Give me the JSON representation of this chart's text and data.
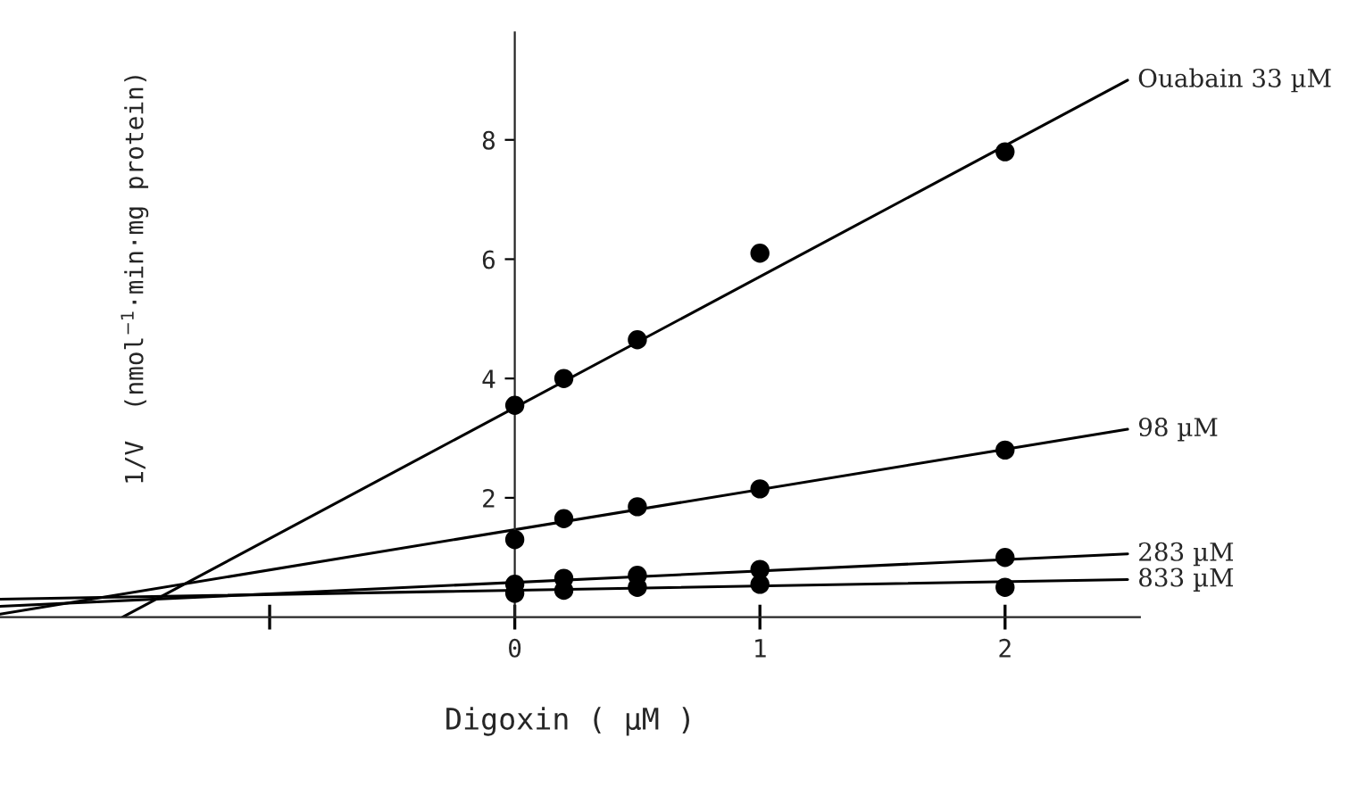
{
  "chart_data": {
    "type": "scatter",
    "xlabel": "Digoxin ( µM )",
    "ylabel": "1/V  (nmol$^{−1}$·min·mg protein)",
    "xlim": [
      -2.1,
      2.55
    ],
    "ylim": [
      0,
      9.8
    ],
    "xticks": [
      {
        "value": -1,
        "label": null
      },
      0,
      1,
      2
    ],
    "yticks": [
      2,
      4,
      6,
      8
    ],
    "grid": false,
    "legend": false,
    "series": [
      {
        "type": "line",
        "name": "Ouabain 33 µM",
        "color": "#000000",
        "marker": "none",
        "x": [
          -1.6,
          2.5
        ],
        "values": [
          0,
          9.0
        ]
      },
      {
        "type": "line",
        "name": "98 µM",
        "color": "#000000",
        "marker": "none",
        "x": [
          -2.1,
          2.5
        ],
        "values": [
          0.05,
          3.15
        ]
      },
      {
        "type": "line",
        "name": "283 µM",
        "color": "#000000",
        "marker": "none",
        "x": [
          -2.1,
          2.5
        ],
        "values": [
          0.18,
          1.06
        ]
      },
      {
        "type": "line",
        "name": "833 µM",
        "color": "#000000",
        "marker": "none",
        "x": [
          -2.1,
          2.5
        ],
        "values": [
          0.3,
          0.63
        ]
      },
      {
        "color": "#000000",
        "marker": "circle",
        "x": [
          0,
          0.2,
          0.5,
          1,
          2
        ],
        "values": [
          3.55,
          4.0,
          4.65,
          6.1,
          7.8
        ]
      },
      {
        "color": "#000000",
        "marker": "circle",
        "x": [
          0,
          0.2,
          0.5,
          1,
          2
        ],
        "values": [
          1.3,
          1.65,
          1.85,
          2.15,
          2.8
        ]
      },
      {
        "color": "#000000",
        "marker": "circle",
        "x": [
          0,
          0.2,
          0.5,
          1,
          2
        ],
        "values": [
          0.55,
          0.65,
          0.7,
          0.8,
          1.0
        ]
      },
      {
        "color": "#000000",
        "marker": "circle",
        "x": [
          0,
          0.2,
          0.5,
          1,
          2
        ],
        "values": [
          0.4,
          0.45,
          0.5,
          0.55,
          0.5
        ]
      }
    ]
  }
}
